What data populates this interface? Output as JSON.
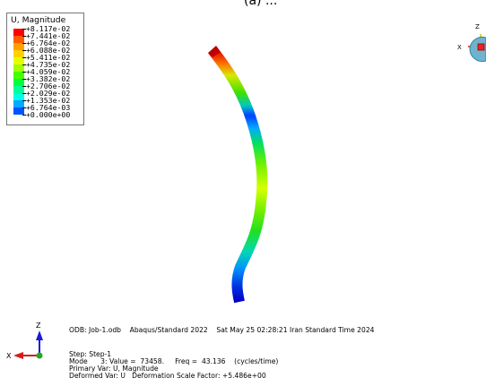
{
  "title_fragment": "(a) ...",
  "legend": {
    "title": "U, Magnitude",
    "entries": [
      {
        "label": "+8.117e-02",
        "color": "#ff0000"
      },
      {
        "label": "+7.441e-02",
        "color": "#ff5a00"
      },
      {
        "label": "+6.764e-02",
        "color": "#ffa000"
      },
      {
        "label": "+6.088e-02",
        "color": "#ffd200"
      },
      {
        "label": "+5.411e-02",
        "color": "#e6ff00"
      },
      {
        "label": "+4.735e-02",
        "color": "#a0ff00"
      },
      {
        "label": "+4.059e-02",
        "color": "#46ff00"
      },
      {
        "label": "+3.382e-02",
        "color": "#00ff3c"
      },
      {
        "label": "+2.706e-02",
        "color": "#00ff9b"
      },
      {
        "label": "+2.029e-02",
        "color": "#00ffe6"
      },
      {
        "label": "+1.353e-02",
        "color": "#00aaff"
      },
      {
        "label": "+6.764e-03",
        "color": "#0055ff"
      },
      {
        "label": "+0.000e+00",
        "color": "#0000ff"
      }
    ]
  },
  "info": {
    "odb_line": "ODB: Job-1.odb    Abaqus/Standard 2022    Sat May 25 02:28:21 Iran Standard Time 2024",
    "step_line": "Step: Step-1",
    "mode_line": "Mode      3: Value =  73458.     Freq =  43.136    (cycles/time)",
    "primary_var_line": "Primary Var: U, Magnitude",
    "deformed_var_line": "Deformed Var: U   Deformation Scale Factor: +5.486e+00"
  },
  "triad": {
    "z_label": "Z",
    "x_label": "X"
  },
  "view_cube": {
    "z_label": "Z",
    "x_label": "X"
  }
}
